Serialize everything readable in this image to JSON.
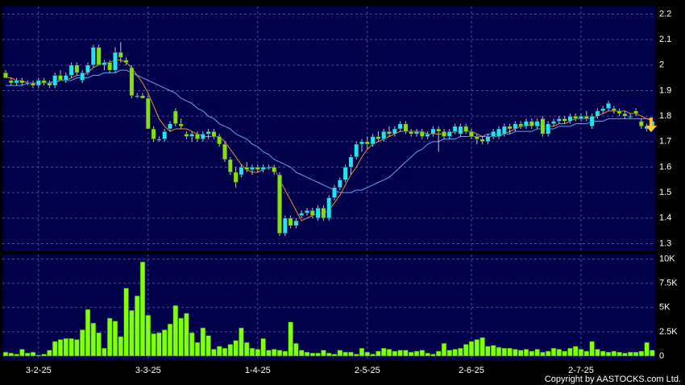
{
  "chart_data": [
    {
      "type": "candlestick",
      "categories": [
        null,
        null,
        null,
        null,
        null,
        null,
        "3-2-25",
        null,
        null,
        null,
        null,
        null,
        null,
        null,
        null,
        null,
        null,
        null,
        null,
        null,
        null,
        null,
        null,
        null,
        null,
        null,
        "3-3-25",
        null,
        null,
        null,
        null,
        null,
        null,
        null,
        null,
        null,
        null,
        null,
        null,
        null,
        null,
        null,
        null,
        null,
        null,
        null,
        "1-4-25",
        null,
        null,
        null,
        null,
        null,
        null,
        null,
        null,
        null,
        null,
        null,
        null,
        null,
        null,
        null,
        null,
        null,
        null,
        null,
        "2-5-25",
        null,
        null,
        null,
        null,
        null,
        null,
        null,
        null,
        null,
        null,
        null,
        null,
        null,
        null,
        null,
        null,
        null,
        null,
        "2-6-25",
        null,
        null,
        null,
        null,
        null,
        null,
        null,
        null,
        null,
        null,
        null,
        null,
        null,
        null,
        null,
        null,
        null,
        null,
        null,
        "2-7-25",
        null,
        null,
        null,
        null,
        null,
        null,
        null,
        null,
        null,
        null,
        null,
        null,
        null
      ],
      "open": [
        1.97,
        1.94,
        1.93,
        1.94,
        1.93,
        1.93,
        1.92,
        1.94,
        1.93,
        1.92,
        1.96,
        1.94,
        1.96,
        2.0,
        1.94,
        1.97,
        2.0,
        2.07,
        2.0,
        2.01,
        1.98,
        2.05,
        2.02,
        1.99,
        1.88,
        1.88,
        1.87,
        1.75,
        1.71,
        1.71,
        1.75,
        1.82,
        1.77,
        1.73,
        1.72,
        1.73,
        1.71,
        1.73,
        1.74,
        1.72,
        1.69,
        1.63,
        1.58,
        1.57,
        1.6,
        1.59,
        1.6,
        1.59,
        1.6,
        1.6,
        1.57,
        1.34,
        1.4,
        1.37,
        1.41,
        1.42,
        1.43,
        1.4,
        1.44,
        1.4,
        1.48,
        1.52,
        1.55,
        1.6,
        1.64,
        1.69,
        1.7,
        1.69,
        1.72,
        1.71,
        1.74,
        1.73,
        1.75,
        1.77,
        1.74,
        1.73,
        1.74,
        1.72,
        1.73,
        1.75,
        1.74,
        1.72,
        1.74,
        1.73,
        1.76,
        1.74,
        1.72,
        1.71,
        1.7,
        1.72,
        1.72,
        1.73,
        1.76,
        1.75,
        1.77,
        1.76,
        1.78,
        1.76,
        1.79,
        1.73,
        1.77,
        1.78,
        1.79,
        1.78,
        1.8,
        1.79,
        1.8,
        1.76,
        1.8,
        1.82,
        1.83,
        1.83,
        1.82,
        1.81,
        1.8,
        1.82,
        1.78,
        1.75,
        1.76
      ],
      "high": [
        1.98,
        1.95,
        1.95,
        1.95,
        1.94,
        1.94,
        1.95,
        1.95,
        1.94,
        1.97,
        1.98,
        1.97,
        2.01,
        2.01,
        1.98,
        2.01,
        2.08,
        2.08,
        2.02,
        2.02,
        2.07,
        2.09,
        2.03,
        2.0,
        1.89,
        1.89,
        1.88,
        1.76,
        1.72,
        1.75,
        1.78,
        1.83,
        1.79,
        1.74,
        1.74,
        1.74,
        1.74,
        1.75,
        1.75,
        1.73,
        1.7,
        1.64,
        1.6,
        1.61,
        1.62,
        1.61,
        1.61,
        1.61,
        1.61,
        1.61,
        1.58,
        1.41,
        1.41,
        1.4,
        1.43,
        1.44,
        1.44,
        1.45,
        1.45,
        1.49,
        1.53,
        1.56,
        1.61,
        1.65,
        1.7,
        1.71,
        1.72,
        1.73,
        1.74,
        1.75,
        1.76,
        1.76,
        1.78,
        1.78,
        1.75,
        1.75,
        1.75,
        1.74,
        1.76,
        1.76,
        1.75,
        1.75,
        1.77,
        1.77,
        1.77,
        1.75,
        1.73,
        1.72,
        1.73,
        1.75,
        1.76,
        1.77,
        1.77,
        1.78,
        1.78,
        1.79,
        1.79,
        1.79,
        1.8,
        1.78,
        1.79,
        1.8,
        1.8,
        1.81,
        1.81,
        1.81,
        1.82,
        1.81,
        1.83,
        1.84,
        1.86,
        1.84,
        1.83,
        1.82,
        1.81,
        1.83,
        1.79,
        1.77,
        1.79
      ],
      "low": [
        1.95,
        1.92,
        1.92,
        1.92,
        1.92,
        1.91,
        1.91,
        1.92,
        1.91,
        1.91,
        1.94,
        1.93,
        1.95,
        1.96,
        1.93,
        1.96,
        1.99,
        2.0,
        1.98,
        1.97,
        1.97,
        2.01,
        2.0,
        1.87,
        1.87,
        1.87,
        1.75,
        1.7,
        1.7,
        1.7,
        1.74,
        1.76,
        1.75,
        1.71,
        1.7,
        1.7,
        1.7,
        1.71,
        1.71,
        1.68,
        1.62,
        1.57,
        1.52,
        1.56,
        1.58,
        1.57,
        1.58,
        1.58,
        1.59,
        1.57,
        1.33,
        1.33,
        1.36,
        1.36,
        1.4,
        1.41,
        1.4,
        1.39,
        1.39,
        1.39,
        1.47,
        1.51,
        1.54,
        1.57,
        1.63,
        1.66,
        1.67,
        1.68,
        1.7,
        1.7,
        1.72,
        1.72,
        1.74,
        1.73,
        1.72,
        1.72,
        1.71,
        1.71,
        1.72,
        1.66,
        1.71,
        1.71,
        1.73,
        1.72,
        1.73,
        1.71,
        1.69,
        1.69,
        1.69,
        1.71,
        1.71,
        1.72,
        1.73,
        1.74,
        1.75,
        1.75,
        1.75,
        1.75,
        1.72,
        1.72,
        1.76,
        1.77,
        1.77,
        1.77,
        1.78,
        1.78,
        1.78,
        1.75,
        1.79,
        1.81,
        1.82,
        1.81,
        1.8,
        1.79,
        1.79,
        1.8,
        1.75,
        1.74,
        1.75
      ],
      "close": [
        1.95,
        1.93,
        1.94,
        1.93,
        1.93,
        1.92,
        1.94,
        1.93,
        1.92,
        1.96,
        1.94,
        1.96,
        2.0,
        1.97,
        1.97,
        2.0,
        2.07,
        2.0,
        2.01,
        1.98,
        2.05,
        2.03,
        2.01,
        1.88,
        1.88,
        1.87,
        1.75,
        1.71,
        1.71,
        1.74,
        1.77,
        1.77,
        1.76,
        1.72,
        1.73,
        1.71,
        1.73,
        1.74,
        1.72,
        1.69,
        1.63,
        1.58,
        1.54,
        1.6,
        1.59,
        1.6,
        1.59,
        1.6,
        1.6,
        1.58,
        1.34,
        1.4,
        1.37,
        1.39,
        1.42,
        1.43,
        1.41,
        1.44,
        1.4,
        1.48,
        1.52,
        1.55,
        1.6,
        1.64,
        1.69,
        1.7,
        1.69,
        1.72,
        1.71,
        1.74,
        1.73,
        1.75,
        1.77,
        1.74,
        1.73,
        1.74,
        1.72,
        1.73,
        1.75,
        1.74,
        1.72,
        1.74,
        1.76,
        1.76,
        1.74,
        1.72,
        1.71,
        1.7,
        1.72,
        1.74,
        1.75,
        1.76,
        1.75,
        1.77,
        1.76,
        1.78,
        1.76,
        1.78,
        1.73,
        1.77,
        1.78,
        1.79,
        1.78,
        1.8,
        1.79,
        1.8,
        1.79,
        1.8,
        1.82,
        1.83,
        1.85,
        1.82,
        1.81,
        1.8,
        1.8,
        1.81,
        1.76,
        1.76,
        1.78
      ],
      "up_color": "#22e4f0",
      "down_color": "#80e010",
      "series": [
        {
          "color": "#f08a30",
          "values": [
            1.95,
            1.95,
            1.94,
            1.94,
            1.93,
            1.93,
            1.93,
            1.93,
            1.93,
            1.93,
            1.94,
            1.94,
            1.95,
            1.96,
            1.96,
            1.97,
            1.99,
            2.0,
            2.01,
            2.01,
            2.02,
            2.02,
            2.01,
            1.99,
            1.96,
            1.93,
            1.89,
            1.84,
            1.79,
            1.76,
            1.74,
            1.75,
            1.75,
            1.75,
            1.74,
            1.73,
            1.72,
            1.72,
            1.72,
            1.72,
            1.7,
            1.67,
            1.64,
            1.61,
            1.59,
            1.58,
            1.58,
            1.59,
            1.6,
            1.6,
            1.55,
            1.51,
            1.47,
            1.43,
            1.39,
            1.4,
            1.41,
            1.42,
            1.42,
            1.43,
            1.46,
            1.49,
            1.53,
            1.57,
            1.6,
            1.64,
            1.67,
            1.69,
            1.7,
            1.71,
            1.72,
            1.73,
            1.74,
            1.74,
            1.74,
            1.74,
            1.74,
            1.73,
            1.73,
            1.73,
            1.73,
            1.73,
            1.74,
            1.74,
            1.74,
            1.74,
            1.73,
            1.72,
            1.72,
            1.72,
            1.72,
            1.73,
            1.74,
            1.75,
            1.76,
            1.76,
            1.77,
            1.77,
            1.76,
            1.76,
            1.76,
            1.77,
            1.77,
            1.78,
            1.79,
            1.79,
            1.79,
            1.79,
            1.8,
            1.81,
            1.82,
            1.82,
            1.82,
            1.82,
            1.81,
            1.81,
            1.8,
            1.79,
            1.78
          ]
        },
        {
          "color": "#5aa8f0",
          "values": [
            1.92,
            1.92,
            1.92,
            1.92,
            1.93,
            1.93,
            1.93,
            1.93,
            1.93,
            1.94,
            1.94,
            1.94,
            1.94,
            1.95,
            1.95,
            1.95,
            1.96,
            1.96,
            1.97,
            1.97,
            1.97,
            1.98,
            1.98,
            1.97,
            1.96,
            1.95,
            1.94,
            1.93,
            1.92,
            1.91,
            1.9,
            1.89,
            1.87,
            1.86,
            1.85,
            1.83,
            1.82,
            1.8,
            1.79,
            1.77,
            1.76,
            1.75,
            1.73,
            1.72,
            1.71,
            1.69,
            1.68,
            1.66,
            1.65,
            1.63,
            1.62,
            1.61,
            1.6,
            1.58,
            1.57,
            1.56,
            1.55,
            1.54,
            1.53,
            1.52,
            1.51,
            1.5,
            1.5,
            1.5,
            1.51,
            1.51,
            1.52,
            1.53,
            1.54,
            1.55,
            1.56,
            1.58,
            1.6,
            1.62,
            1.64,
            1.66,
            1.67,
            1.69,
            1.7,
            1.7,
            1.71,
            1.71,
            1.71,
            1.72,
            1.72,
            1.72,
            1.72,
            1.72,
            1.73,
            1.73,
            1.73,
            1.73,
            1.73,
            1.74,
            1.74,
            1.74,
            1.74,
            1.75,
            1.75,
            1.75,
            1.75,
            1.76,
            1.76,
            1.76,
            1.77,
            1.77,
            1.77,
            1.78,
            1.78,
            1.78,
            1.79,
            1.79,
            1.79,
            1.79,
            1.79,
            1.79,
            1.79,
            1.79,
            1.79
          ]
        }
      ],
      "ylim": [
        1.27,
        2.23
      ],
      "yticks": [
        1.3,
        1.4,
        1.5,
        1.6,
        1.7,
        1.8,
        1.9,
        2,
        2.1,
        2.2
      ],
      "grid": true
    },
    {
      "type": "bar",
      "color": "#80ff10",
      "values": [
        400,
        300,
        200,
        700,
        300,
        400,
        100,
        200,
        600,
        1500,
        1700,
        1800,
        1800,
        1700,
        2700,
        4800,
        3400,
        2400,
        800,
        3900,
        3600,
        2000,
        7000,
        4700,
        6200,
        9700,
        4200,
        2300,
        2400,
        2700,
        3300,
        5200,
        3900,
        4400,
        2400,
        1400,
        2900,
        2100,
        700,
        1000,
        800,
        1200,
        1600,
        2900,
        1400,
        800,
        700,
        1800,
        600,
        700,
        600,
        500,
        3500,
        1300,
        600,
        400,
        300,
        300,
        600,
        300,
        200,
        600,
        400,
        400,
        200,
        800,
        400,
        200,
        500,
        800,
        700,
        500,
        600,
        600,
        400,
        500,
        600,
        300,
        200,
        500,
        1300,
        600,
        700,
        800,
        1200,
        1500,
        1700,
        1900,
        1000,
        1100,
        900,
        800,
        800,
        700,
        600,
        700,
        500,
        700,
        400,
        500,
        800,
        700,
        500,
        800,
        1000,
        700,
        500,
        1500,
        700,
        500,
        400,
        500,
        400,
        300,
        400,
        400,
        500,
        1400,
        600
      ],
      "ylim": [
        0,
        10300
      ],
      "yticks": [
        0,
        {
          "value": 2500,
          "label": "2.5K"
        },
        {
          "value": 5000,
          "label": "5K"
        },
        {
          "value": 7500,
          "label": "7.5K"
        },
        {
          "value": 10000,
          "label": "10K"
        }
      ],
      "grid": true
    }
  ],
  "copyright": "Copyright by AASTOCKS.com Ltd."
}
